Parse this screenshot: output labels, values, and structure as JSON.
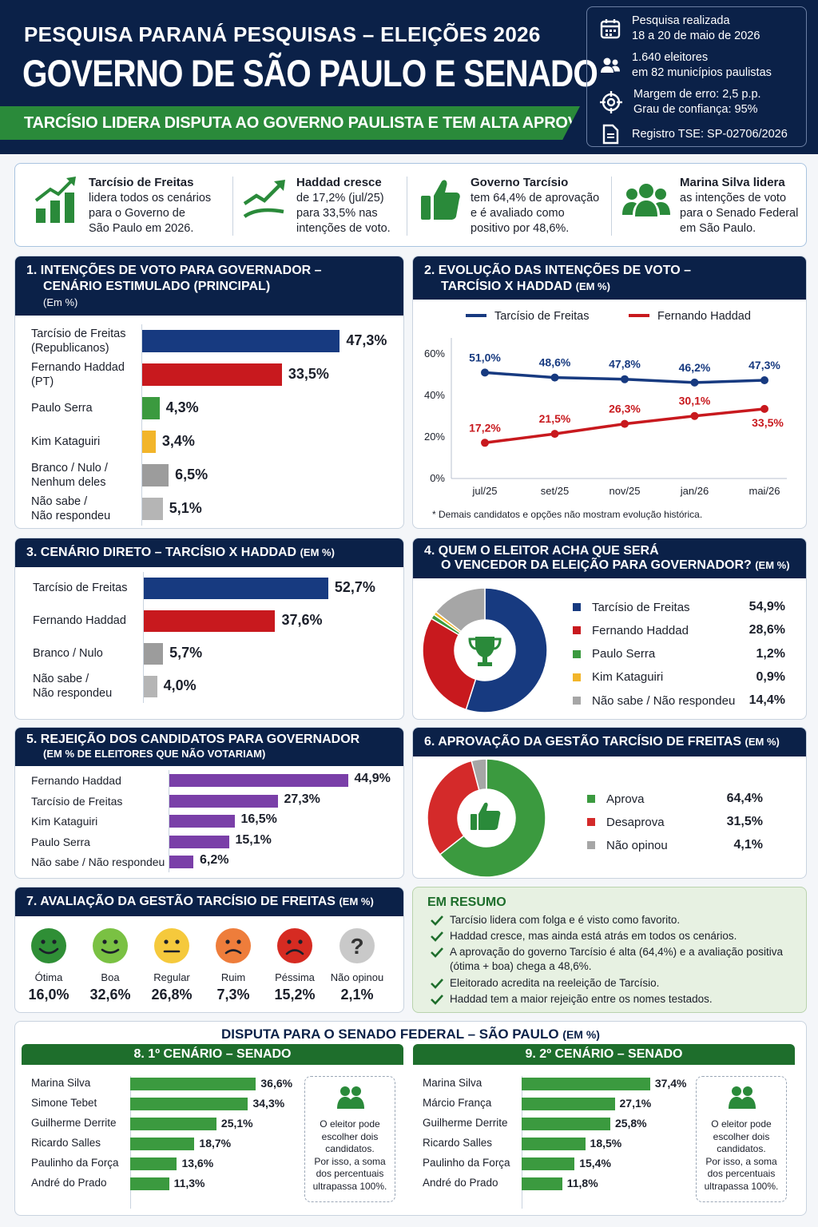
{
  "header": {
    "supertitle": "PESQUISA PARANÁ PESQUISAS – ELEIÇÕES 2026",
    "title": "GOVERNO DE SÃO PAULO E SENADO",
    "banner": "TARCÍSIO LIDERA DISPUTA AO GOVERNO PAULISTA E TEM ALTA APROVAÇÃO",
    "info": {
      "date_label": "Pesquisa realizada",
      "date_value": "18 a 20 de maio de 2026",
      "sample_1": "1.640 eleitores",
      "sample_2": "em 82 municípios paulistas",
      "margin": "Margem de erro: 2,5 p.p.",
      "confidence": "Grau de confiança: 95%",
      "registry": "Registro TSE: SP-02706/2026"
    }
  },
  "kpis": [
    {
      "title": "Tarcísio de Freitas",
      "l1": "lidera todos os cenários",
      "l2": "para o Governo de",
      "l3": "São Paulo em 2026.",
      "icon": "bar-chart-up-icon"
    },
    {
      "title": "Haddad cresce",
      "l1": "de 17,2% (jul/25)",
      "l2": "para 33,5% nas",
      "l3": "intenções de voto.",
      "icon": "trend-line-icon"
    },
    {
      "title": "Governo Tarcísio",
      "l1": "tem 64,4% de aprovação",
      "l2": "e é avaliado como",
      "l3": "positivo por 48,6%.",
      "icon": "thumbs-up-icon"
    },
    {
      "title": "Marina Silva lidera",
      "l1": "as intenções de voto",
      "l2": "para o Senado Federal",
      "l3": "em São Paulo.",
      "icon": "group-icon"
    }
  ],
  "card1": {
    "title_1": "1.  INTENÇÕES DE VOTO PARA GOVERNADOR –",
    "title_2": "CENÁRIO ESTIMULADO (PRINCIPAL)",
    "unit": "(Em %)"
  },
  "card2": {
    "title_1": "2.  EVOLUÇÃO DAS INTENÇÕES DE VOTO –",
    "title_2": "TARCÍSIO X HADDAD",
    "unit": "(EM %)",
    "footnote": "* Demais candidatos e opções não mostram evolução histórica."
  },
  "card3": {
    "title": "3.  CENÁRIO DIRETO – TARCÍSIO X HADDAD",
    "unit": "(EM %)"
  },
  "card4": {
    "title_1": "4.  QUEM O ELEITOR ACHA QUE SERÁ",
    "title_2": "O VENCEDOR DA ELEIÇÃO PARA GOVERNADOR?",
    "unit": "(EM %)"
  },
  "card5": {
    "title": "5.  REJEIÇÃO DOS CANDIDATOS PARA GOVERNADOR",
    "sub": "(EM % DE ELEITORES QUE NÃO VOTARIAM)"
  },
  "card6": {
    "title": "6.  APROVAÇÃO DA GESTÃO TARCÍSIO DE FREITAS",
    "unit": "(EM %)"
  },
  "card7": {
    "title": "7.  AVALIAÇÃO DA GESTÃO TARCÍSIO DE FREITAS",
    "unit": "(EM %)"
  },
  "summary": {
    "title": "EM RESUMO",
    "items": [
      "Tarcísio lidera com folga e é visto como favorito.",
      "Haddad cresce, mas ainda está atrás em todos os cenários.",
      "A aprovação do governo Tarcísio é alta (64,4%) e a avaliação positiva (ótima + boa) chega a 48,6%.",
      "Eleitorado acredita na reeleição de Tarcísio.",
      "Haddad tem a maior rejeição entre os nomes testados."
    ]
  },
  "senate": {
    "title": "DISPUTA PARA O SENADO FEDERAL – SÃO PAULO",
    "unit": "(EM %)",
    "panel1": "8. 1º CENÁRIO – SENADO",
    "panel2": "9. 2º CENÁRIO – SENADO",
    "note": [
      "O eleitor pode",
      "escolher dois",
      "candidatos.",
      "Por isso, a soma",
      "dos percentuais",
      "ultrapassa 100%."
    ]
  },
  "chart_data": [
    {
      "type": "bar",
      "orientation": "horizontal",
      "title": "INTENÇÕES DE VOTO PARA GOVERNADOR – CENÁRIO ESTIMULADO (PRINCIPAL)",
      "categories": [
        [
          "Tarcísio de Freitas",
          "(Republicanos)"
        ],
        [
          "Fernando Haddad",
          "(PT)"
        ],
        [
          "Paulo Serra"
        ],
        [
          "Kim Kataguiri"
        ],
        [
          "Branco / Nulo /",
          "Nenhum deles"
        ],
        [
          "Não sabe /",
          "Não respondeu"
        ]
      ],
      "values": [
        47.3,
        33.5,
        4.3,
        3.4,
        6.5,
        5.1
      ],
      "labels": [
        "47,3%",
        "33,5%",
        "4,3%",
        "3,4%",
        "6,5%",
        "5,1%"
      ],
      "colors": [
        "#173a80",
        "#c8191e",
        "#3b9a3f",
        "#f2b52a",
        "#9c9c9c",
        "#b5b5b5"
      ]
    },
    {
      "type": "line",
      "title": "EVOLUÇÃO DAS INTENÇÕES DE VOTO – TARCÍSIO X HADDAD",
      "x": [
        "jul/25",
        "set/25",
        "nov/25",
        "jan/26",
        "mai/26"
      ],
      "ylim": [
        0,
        60
      ],
      "yticks": [
        "0%",
        "20%",
        "40%",
        "60%"
      ],
      "legend": "top",
      "series": [
        {
          "name": "Tarcísio de Freitas",
          "values": [
            51.0,
            48.6,
            47.8,
            46.2,
            47.3
          ],
          "labels": [
            "51,0%",
            "48,6%",
            "47,8%",
            "46,2%",
            "47,3%"
          ],
          "color": "#173a80"
        },
        {
          "name": "Fernando Haddad",
          "values": [
            17.2,
            21.5,
            26.3,
            30.1,
            33.5
          ],
          "labels": [
            "17,2%",
            "21,5%",
            "26,3%",
            "30,1%",
            "33,5%"
          ],
          "color": "#c8191e"
        }
      ]
    },
    {
      "type": "bar",
      "orientation": "horizontal",
      "title": "CENÁRIO DIRETO – TARCÍSIO X HADDAD",
      "categories": [
        [
          "Tarcísio de Freitas"
        ],
        [
          "Fernando Haddad"
        ],
        [
          "Branco / Nulo"
        ],
        [
          "Não sabe /",
          "Não respondeu"
        ]
      ],
      "values": [
        52.7,
        37.6,
        5.7,
        4.0
      ],
      "labels": [
        "52,7%",
        "37,6%",
        "5,7%",
        "4,0%"
      ],
      "colors": [
        "#173a80",
        "#c8191e",
        "#9c9c9c",
        "#b5b5b5"
      ]
    },
    {
      "type": "pie",
      "donut": true,
      "title": "QUEM O ELEITOR ACHA QUE SERÁ O VENCEDOR DA ELEIÇÃO PARA GOVERNADOR?",
      "categories": [
        "Tarcísio de Freitas",
        "Fernando Haddad",
        "Paulo Serra",
        "Kim Kataguiri",
        "Não sabe / Não respondeu"
      ],
      "values": [
        54.9,
        28.6,
        1.2,
        0.9,
        14.4
      ],
      "labels": [
        "54,9%",
        "28,6%",
        "1,2%",
        "0,9%",
        "14,4%"
      ],
      "colors": [
        "#173a80",
        "#c8191e",
        "#3b9a3f",
        "#f2b52a",
        "#a6a6a6"
      ]
    },
    {
      "type": "bar",
      "orientation": "horizontal",
      "title": "REJEIÇÃO DOS CANDIDATOS PARA GOVERNADOR",
      "categories": [
        "Fernando Haddad",
        "Tarcísio de Freitas",
        "Kim Kataguiri",
        "Paulo Serra",
        "Não sabe / Não respondeu"
      ],
      "values": [
        44.9,
        27.3,
        16.5,
        15.1,
        6.2
      ],
      "labels": [
        "44,9%",
        "27,3%",
        "16,5%",
        "15,1%",
        "6,2%"
      ],
      "color": "#7a3fa8"
    },
    {
      "type": "pie",
      "donut": true,
      "title": "APROVAÇÃO DA GESTÃO TARCÍSIO DE FREITAS",
      "categories": [
        "Aprova",
        "Desaprova",
        "Não opinou"
      ],
      "values": [
        64.4,
        31.5,
        4.1
      ],
      "labels": [
        "64,4%",
        "31,5%",
        "4,1%"
      ],
      "colors": [
        "#3b9a3f",
        "#d42a2a",
        "#a6a6a6"
      ]
    },
    {
      "type": "bar",
      "title": "AVALIAÇÃO DA GESTÃO TARCÍSIO DE FREITAS",
      "categories": [
        "Ótima",
        "Boa",
        "Regular",
        "Ruim",
        "Péssima",
        "Não opinou"
      ],
      "values": [
        16.0,
        32.6,
        26.8,
        7.3,
        15.2,
        2.1
      ],
      "labels": [
        "16,0%",
        "32,6%",
        "26,8%",
        "7,3%",
        "15,2%",
        "2,1%"
      ],
      "icons": [
        "very-happy-face-icon",
        "happy-face-icon",
        "neutral-face-icon",
        "sad-face-icon",
        "very-sad-face-icon",
        "question-mark-icon"
      ],
      "colors": [
        "#2f8f36",
        "#7ac143",
        "#f5c93c",
        "#ee7d3b",
        "#d62b22",
        "#c9c9c9"
      ]
    },
    {
      "type": "bar",
      "orientation": "horizontal",
      "title": "1º CENÁRIO – SENADO",
      "categories": [
        "Marina Silva",
        "Simone Tebet",
        "Guilherme Derrite",
        "Ricardo Salles",
        "Paulinho da Força",
        "André do Prado"
      ],
      "values": [
        36.6,
        34.3,
        25.1,
        18.7,
        13.6,
        11.3
      ],
      "labels": [
        "36,6%",
        "34,3%",
        "25,1%",
        "18,7%",
        "13,6%",
        "11,3%"
      ],
      "color": "#3b9a3f"
    },
    {
      "type": "bar",
      "orientation": "horizontal",
      "title": "2º CENÁRIO – SENADO",
      "categories": [
        "Marina Silva",
        "Márcio França",
        "Guilherme Derrite",
        "Ricardo Salles",
        "Paulinho da Força",
        "André do Prado"
      ],
      "values": [
        37.4,
        27.1,
        25.8,
        18.5,
        15.4,
        11.8
      ],
      "labels": [
        "37,4%",
        "27,1%",
        "25,8%",
        "18,5%",
        "15,4%",
        "11,8%"
      ],
      "color": "#3b9a3f"
    }
  ]
}
